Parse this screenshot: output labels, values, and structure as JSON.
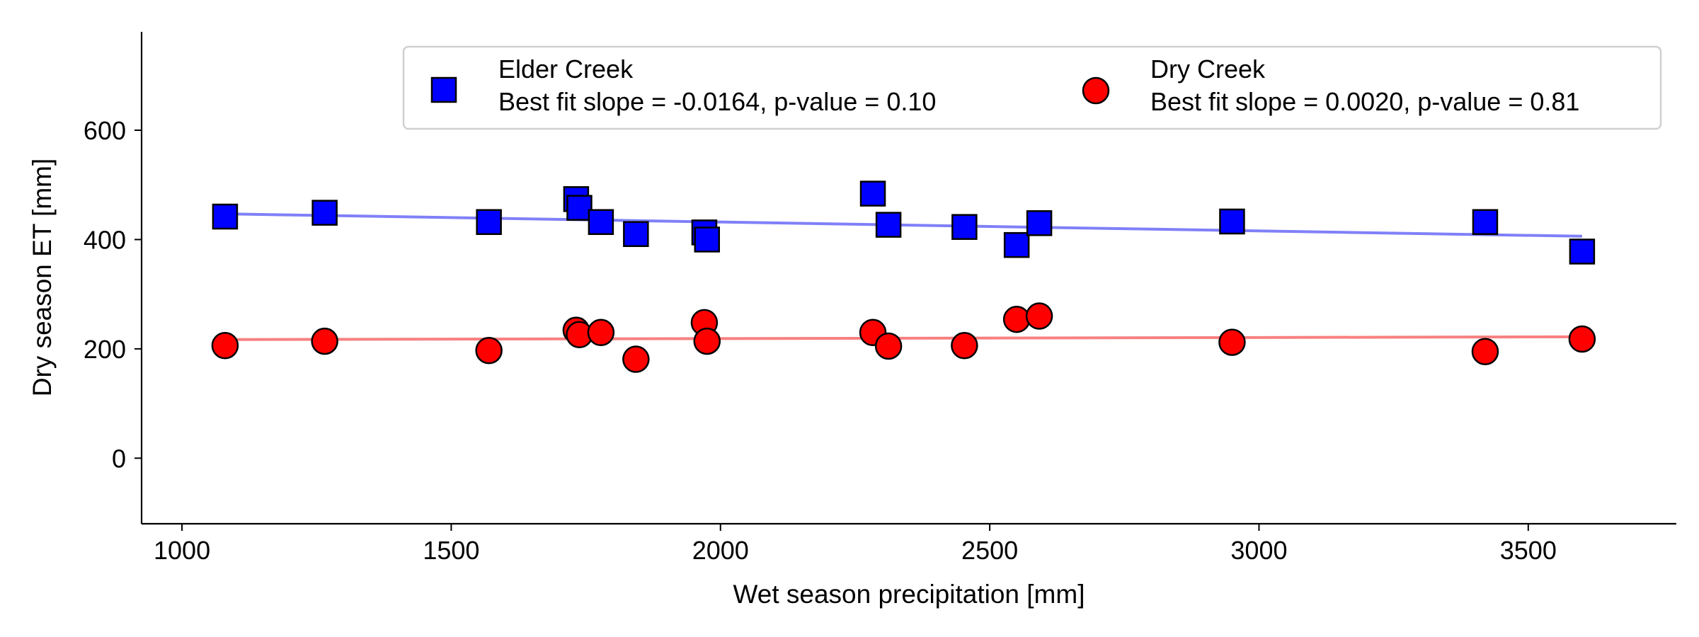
{
  "chart_data": {
    "type": "scatter",
    "xlabel": "Wet season precipitation [mm]",
    "ylabel": "Dry season ET [mm]",
    "xlim": [
      925,
      3775
    ],
    "ylim": [
      -120,
      780
    ],
    "xticks": [
      1000,
      1500,
      2000,
      2500,
      3000,
      3500
    ],
    "yticks": [
      0,
      200,
      400,
      600
    ],
    "grid": false,
    "legend_position": "top-right",
    "series": [
      {
        "name": "Elder Creek",
        "annotation": "Best fit slope = -0.0164, p-value = 0.10",
        "marker": "square",
        "color": "#0000ff",
        "fit_color": "#8080f8",
        "points": [
          [
            1080,
            442
          ],
          [
            1265,
            449
          ],
          [
            1570,
            432
          ],
          [
            1732,
            474
          ],
          [
            1738,
            458
          ],
          [
            1778,
            432
          ],
          [
            1843,
            410
          ],
          [
            1970,
            413
          ],
          [
            1975,
            400
          ],
          [
            2283,
            484
          ],
          [
            2312,
            427
          ],
          [
            2453,
            423
          ],
          [
            2550,
            390
          ],
          [
            2592,
            430
          ],
          [
            2950,
            433
          ],
          [
            3420,
            432
          ],
          [
            3600,
            378
          ]
        ],
        "fit": [
          [
            1080,
            447
          ],
          [
            3600,
            406
          ]
        ]
      },
      {
        "name": "Dry Creek",
        "annotation": "Best fit slope = 0.0020, p-value = 0.81",
        "marker": "circle",
        "color": "#ff0000",
        "fit_color": "#f88080",
        "points": [
          [
            1080,
            206
          ],
          [
            1265,
            214
          ],
          [
            1570,
            197
          ],
          [
            1732,
            234
          ],
          [
            1738,
            226
          ],
          [
            1778,
            230
          ],
          [
            1843,
            181
          ],
          [
            1970,
            248
          ],
          [
            1975,
            214
          ],
          [
            2283,
            230
          ],
          [
            2312,
            205
          ],
          [
            2453,
            206
          ],
          [
            2550,
            254
          ],
          [
            2592,
            260
          ],
          [
            2950,
            212
          ],
          [
            3420,
            195
          ],
          [
            3600,
            218
          ]
        ],
        "fit": [
          [
            1080,
            217
          ],
          [
            3600,
            222
          ]
        ]
      }
    ]
  }
}
